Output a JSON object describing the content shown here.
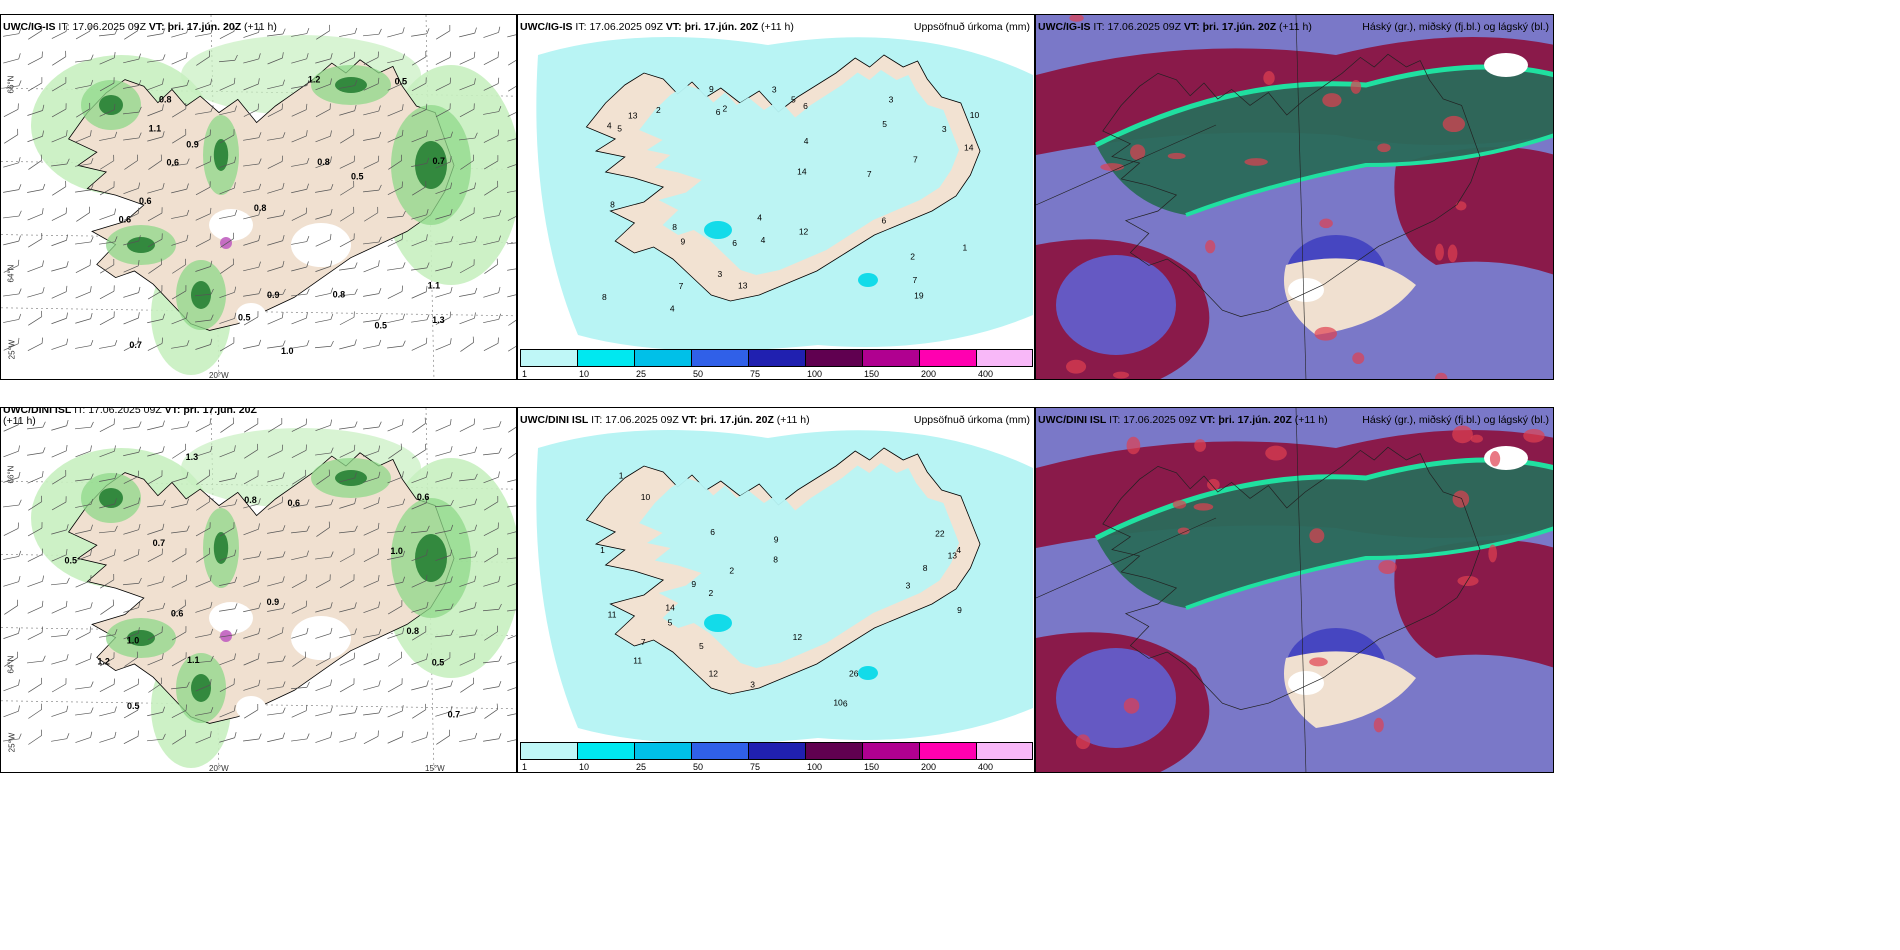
{
  "panels": [
    {
      "id": "p1",
      "model": "UWC/IG-IS",
      "it_label": "IT:",
      "it": "17.06.2025 09Z",
      "vt_label": "VT:",
      "vt": "þri. 17.jún. 20Z",
      "lead": "(+11 h)",
      "right_title": "",
      "type": "wind"
    },
    {
      "id": "p2",
      "model": "UWC/IG-IS",
      "it_label": "IT:",
      "it": "17.06.2025 09Z",
      "vt_label": "VT:",
      "vt": "þri. 17.jún. 20Z",
      "lead": "(+11 h)",
      "right_title": "Uppsöfnuð úrkoma (mm)",
      "type": "precip"
    },
    {
      "id": "p3",
      "model": "UWC/IG-IS",
      "it_label": "IT:",
      "it": "17.06.2025 09Z",
      "vt_label": "VT:",
      "vt": "þri. 17.jún. 20Z",
      "lead": "(+11 h)",
      "right_title": "Háský (gr.), miðský (fj.bl.) og lágský (bl.)",
      "type": "cloud"
    },
    {
      "id": "p4",
      "model": "UWC/DINI ISL",
      "it_label": "IT:",
      "it": "17.06.2025 09Z",
      "vt_label": "VT:",
      "vt": "þri. 17.jún. 20Z",
      "lead": "(+11 h)",
      "right_title": "",
      "type": "wind"
    },
    {
      "id": "p5",
      "model": "UWC/DINI ISL",
      "it_label": "IT:",
      "it": "17.06.2025 09Z",
      "vt_label": "VT:",
      "vt": "þri. 17.jún. 20Z",
      "lead": "(+11 h)",
      "right_title": "Uppsöfnuð úrkoma (mm)",
      "type": "precip"
    },
    {
      "id": "p6",
      "model": "UWC/DINI ISL",
      "it_label": "IT:",
      "it": "17.06.2025 09Z",
      "vt_label": "VT:",
      "vt": "þri. 17.jún. 20Z",
      "lead": "(+11 h)",
      "right_title": "Háský (gr.), miðský (fj.bl.) og lágský (bl.)",
      "type": "cloud"
    }
  ],
  "colorbar": {
    "labels": [
      "1",
      "10",
      "25",
      "50",
      "75",
      "100",
      "150",
      "200",
      "400",
      ""
    ],
    "colors": [
      "#bff7f7",
      "#00e8f0",
      "#00c0e8",
      "#3060e8",
      "#2020b0",
      "#600050",
      "#b00090",
      "#ff00b0",
      "#f8b8f8"
    ]
  },
  "axis_ticks": {
    "lat_66": "66°N",
    "lat_64": "64°N",
    "lon_25": "25°W",
    "lon_20": "20°W",
    "lon_15": "15°W"
  },
  "precip_values_top": [
    "2",
    "2",
    "3",
    "4",
    "3",
    "6",
    "7",
    "8",
    "10",
    "9",
    "13",
    "14",
    "5",
    "6",
    "7",
    "4",
    "6",
    "3",
    "4",
    "19",
    "12",
    "7",
    "13",
    "8",
    "9",
    "4",
    "5",
    "6",
    "7",
    "8",
    "14",
    "3",
    "2",
    "1",
    "4",
    "5"
  ],
  "precip_values_bottom": [
    "1",
    "2",
    "3",
    "5",
    "7",
    "8",
    "9",
    "11",
    "12",
    "14",
    "10",
    "22",
    "26",
    "11",
    "13",
    "9",
    "6",
    "4",
    "5",
    "3",
    "2",
    "1",
    "8",
    "6",
    "9",
    "10",
    "12"
  ],
  "wind_values_top": [
    "0.8",
    "0.6",
    "0.7",
    "0.5",
    "1.3",
    "1.1",
    "0.9",
    "0.5",
    "1.0",
    "0.8",
    "0.6",
    "0.7",
    "0.5",
    "1.2",
    "0.8",
    "1.1",
    "0.6",
    "0.5",
    "0.9",
    "0.8"
  ],
  "wind_values_bottom": [
    "0.5",
    "0.6",
    "0.7",
    "0.8",
    "1.0",
    "1.1",
    "1.2",
    "0.9",
    "0.6",
    "0.5",
    "1.3",
    "0.8",
    "0.7",
    "0.6",
    "0.5",
    "1.0"
  ]
}
